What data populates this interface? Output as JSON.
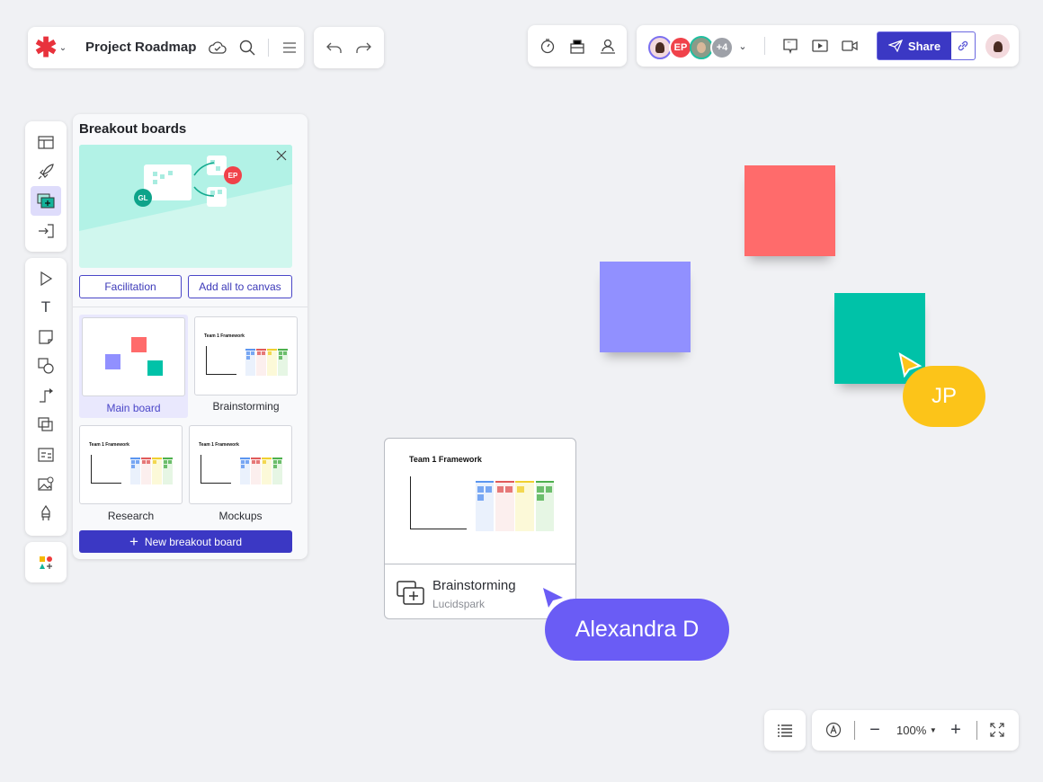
{
  "header": {
    "title": "Project Roadmap",
    "logo": "lucid-asterisk-icon",
    "logo_color": "#e8323c"
  },
  "collaborators": [
    {
      "initials": "",
      "color": "#7a6ff0"
    },
    {
      "initials": "EP",
      "color": "#f0424a"
    },
    {
      "initials": "",
      "color": "#1fbfa0"
    },
    {
      "initials": "+4",
      "color": "#9ea1a8"
    }
  ],
  "share": {
    "label": "Share",
    "color": "#3b38c4"
  },
  "panel": {
    "title": "Breakout boards",
    "banner_avatars": [
      "GL",
      "EP"
    ],
    "facilitation_label": "Facilitation",
    "add_all_label": "Add all to canvas",
    "boards": [
      {
        "label": "Main board",
        "selected": true
      },
      {
        "label": "Brainstorming"
      },
      {
        "label": "Research"
      },
      {
        "label": "Mockups"
      }
    ],
    "framework_title": "Team 1 Framework",
    "new_board_label": "New breakout board"
  },
  "canvas": {
    "stickies": [
      {
        "color": "#ff6b6b"
      },
      {
        "color": "#9190ff"
      },
      {
        "color": "#00c2a8"
      }
    ],
    "card": {
      "framework_title": "Team 1 Framework",
      "title": "Brainstorming",
      "subtitle": "Lucidspark"
    },
    "cursors": [
      {
        "label": "JP",
        "color": "#fcc419"
      },
      {
        "label": "Alexandra D",
        "color": "#6a5cf5"
      }
    ]
  },
  "zoom": {
    "level": "100%"
  }
}
